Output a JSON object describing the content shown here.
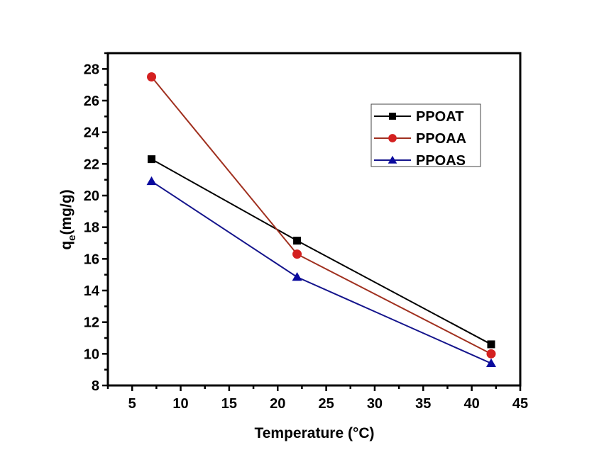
{
  "chart_data": {
    "type": "line",
    "title": "",
    "xlabel": "Temperature (°C)",
    "ylabel_main": "q",
    "ylabel_sub": "e",
    "ylabel_rest": "(mg/g)",
    "xlim": [
      2.5,
      45
    ],
    "ylim": [
      8,
      29
    ],
    "x_ticks": [
      5,
      10,
      15,
      20,
      25,
      30,
      35,
      40,
      45
    ],
    "x_minor_step": 2.5,
    "y_ticks": [
      8,
      10,
      12,
      14,
      16,
      18,
      20,
      22,
      24,
      26,
      28
    ],
    "y_minor_step": 1,
    "grid": false,
    "legend_position": "top-right",
    "x": [
      7,
      22,
      42
    ],
    "series": [
      {
        "name": "PPOAT",
        "values": [
          22.3,
          17.15,
          10.6
        ],
        "line_color": "#000000",
        "marker_color": "#000000",
        "marker": "square"
      },
      {
        "name": "PPOAA",
        "values": [
          27.5,
          16.3,
          10.0
        ],
        "line_color": "#A0301F",
        "marker_color": "#D42020",
        "marker": "circle"
      },
      {
        "name": "PPOAS",
        "values": [
          20.9,
          14.85,
          9.4
        ],
        "line_color": "#14148C",
        "marker_color": "#0A0A9E",
        "marker": "triangle"
      }
    ]
  }
}
